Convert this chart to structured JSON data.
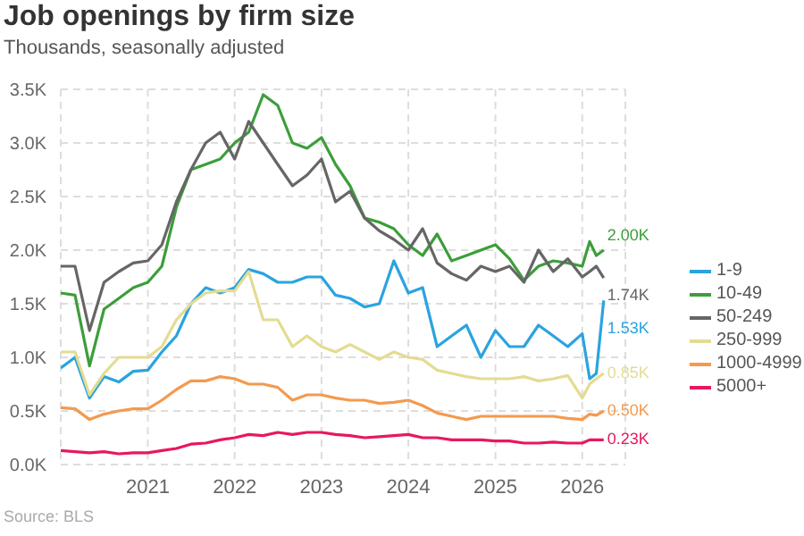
{
  "chart_data": {
    "type": "line",
    "title": "Job openings by firm size",
    "subtitle": "Thousands, seasonally adjusted",
    "annotations": [
      "Source: BLS"
    ],
    "x": [
      "2020-01",
      "2020-03",
      "2020-05",
      "2020-07",
      "2020-09",
      "2020-11",
      "2021-01",
      "2021-03",
      "2021-05",
      "2021-07",
      "2021-09",
      "2021-11",
      "2022-01",
      "2022-03",
      "2022-05",
      "2022-07",
      "2022-09",
      "2022-11",
      "2023-01",
      "2023-03",
      "2023-05",
      "2023-07",
      "2023-09",
      "2023-11",
      "2024-01",
      "2024-03",
      "2024-05",
      "2024-07",
      "2024-09",
      "2024-11",
      "2025-01",
      "2025-03",
      "2025-05",
      "2025-07",
      "2025-09",
      "2025-11",
      "2026-01",
      "2026-02",
      "2026-03",
      "2026-04"
    ],
    "series": [
      {
        "name": "1-9",
        "color": "#2ba3e0",
        "values": [
          0.9,
          1.0,
          0.62,
          0.82,
          0.77,
          0.87,
          0.88,
          1.05,
          1.2,
          1.5,
          1.65,
          1.6,
          1.65,
          1.82,
          1.78,
          1.7,
          1.7,
          1.75,
          1.75,
          1.58,
          1.55,
          1.47,
          1.5,
          1.9,
          1.6,
          1.65,
          1.1,
          1.2,
          1.3,
          1.0,
          1.25,
          1.1,
          1.1,
          1.3,
          1.2,
          1.1,
          1.22,
          0.8,
          0.85,
          1.53
        ],
        "value_labels": [
          null,
          null,
          null,
          null,
          null,
          null,
          null,
          null,
          null,
          null,
          null,
          null,
          null,
          null,
          null,
          null,
          null,
          null,
          null,
          null,
          null,
          null,
          null,
          null,
          null,
          null,
          null,
          null,
          null,
          null,
          null,
          null,
          null,
          null,
          null,
          null,
          null,
          null,
          null,
          "1.53K"
        ]
      },
      {
        "name": "10-49",
        "color": "#3c9e3a",
        "values": [
          1.6,
          1.58,
          0.92,
          1.45,
          1.55,
          1.65,
          1.7,
          1.85,
          2.4,
          2.75,
          2.8,
          2.85,
          3.0,
          3.1,
          3.45,
          3.35,
          3.0,
          2.95,
          3.05,
          2.8,
          2.6,
          2.3,
          2.26,
          2.2,
          2.05,
          1.95,
          2.15,
          1.9,
          1.95,
          2.0,
          2.05,
          1.92,
          1.72,
          1.85,
          1.9,
          1.88,
          1.85,
          2.08,
          1.95,
          2.0
        ],
        "value_labels": [
          null,
          null,
          null,
          null,
          null,
          null,
          null,
          null,
          null,
          null,
          null,
          null,
          null,
          null,
          null,
          null,
          null,
          null,
          null,
          null,
          null,
          null,
          null,
          null,
          null,
          null,
          null,
          null,
          null,
          null,
          null,
          null,
          null,
          null,
          null,
          null,
          null,
          null,
          null,
          "2.00K"
        ]
      },
      {
        "name": "50-249",
        "color": "#666666",
        "values": [
          1.85,
          1.85,
          1.25,
          1.7,
          1.8,
          1.88,
          1.9,
          2.05,
          2.45,
          2.75,
          3.0,
          3.1,
          2.85,
          3.2,
          3.0,
          2.8,
          2.6,
          2.7,
          2.85,
          2.45,
          2.55,
          2.3,
          2.18,
          2.1,
          2.0,
          2.2,
          1.88,
          1.78,
          1.72,
          1.85,
          1.8,
          1.85,
          1.7,
          2.0,
          1.8,
          1.92,
          1.75,
          1.8,
          1.85,
          1.74
        ],
        "value_labels": [
          null,
          null,
          null,
          null,
          null,
          null,
          null,
          null,
          null,
          null,
          null,
          null,
          null,
          null,
          null,
          null,
          null,
          null,
          null,
          null,
          null,
          null,
          null,
          null,
          null,
          null,
          null,
          null,
          null,
          null,
          null,
          null,
          null,
          null,
          null,
          null,
          null,
          null,
          null,
          "1.74K"
        ]
      },
      {
        "name": "250-999",
        "color": "#e3dc92",
        "values": [
          1.05,
          1.05,
          0.65,
          0.85,
          1.0,
          1.0,
          1.0,
          1.1,
          1.35,
          1.5,
          1.6,
          1.62,
          1.62,
          1.8,
          1.35,
          1.35,
          1.1,
          1.2,
          1.1,
          1.05,
          1.12,
          1.05,
          0.98,
          1.05,
          1.0,
          0.98,
          0.88,
          0.85,
          0.82,
          0.8,
          0.8,
          0.8,
          0.82,
          0.78,
          0.8,
          0.83,
          0.62,
          0.75,
          0.8,
          0.85
        ],
        "value_labels": [
          null,
          null,
          null,
          null,
          null,
          null,
          null,
          null,
          null,
          null,
          null,
          null,
          null,
          null,
          null,
          null,
          null,
          null,
          null,
          null,
          null,
          null,
          null,
          null,
          null,
          null,
          null,
          null,
          null,
          null,
          null,
          null,
          null,
          null,
          null,
          null,
          null,
          null,
          null,
          "0.85K"
        ]
      },
      {
        "name": "1000-4999",
        "color": "#f39a4f",
        "values": [
          0.53,
          0.52,
          0.42,
          0.47,
          0.5,
          0.52,
          0.52,
          0.6,
          0.7,
          0.78,
          0.78,
          0.82,
          0.8,
          0.75,
          0.75,
          0.72,
          0.6,
          0.65,
          0.65,
          0.62,
          0.6,
          0.6,
          0.57,
          0.58,
          0.6,
          0.55,
          0.48,
          0.45,
          0.42,
          0.45,
          0.45,
          0.45,
          0.45,
          0.45,
          0.45,
          0.43,
          0.42,
          0.47,
          0.46,
          0.5
        ],
        "value_labels": [
          null,
          null,
          null,
          null,
          null,
          null,
          null,
          null,
          null,
          null,
          null,
          null,
          null,
          null,
          null,
          null,
          null,
          null,
          null,
          null,
          null,
          null,
          null,
          null,
          null,
          null,
          null,
          null,
          null,
          null,
          null,
          null,
          null,
          null,
          null,
          null,
          null,
          null,
          null,
          "0.50K"
        ]
      },
      {
        "name": "5000+",
        "color": "#e8185a",
        "values": [
          0.13,
          0.12,
          0.11,
          0.12,
          0.1,
          0.11,
          0.11,
          0.13,
          0.15,
          0.19,
          0.2,
          0.23,
          0.25,
          0.28,
          0.27,
          0.3,
          0.28,
          0.3,
          0.3,
          0.28,
          0.27,
          0.25,
          0.26,
          0.27,
          0.28,
          0.25,
          0.25,
          0.23,
          0.23,
          0.23,
          0.22,
          0.22,
          0.2,
          0.2,
          0.21,
          0.2,
          0.2,
          0.23,
          0.23,
          0.23
        ],
        "value_labels": [
          null,
          null,
          null,
          null,
          null,
          null,
          null,
          null,
          null,
          null,
          null,
          null,
          null,
          null,
          null,
          null,
          null,
          null,
          null,
          null,
          null,
          null,
          null,
          null,
          null,
          null,
          null,
          null,
          null,
          null,
          null,
          null,
          null,
          null,
          null,
          null,
          null,
          null,
          null,
          "0.23K"
        ]
      }
    ],
    "xlim": [
      "2020-01",
      "2026-07"
    ],
    "xticks": [
      "2021",
      "2022",
      "2023",
      "2024",
      "2025",
      "2026"
    ],
    "ylim": [
      0,
      3.5
    ],
    "yticks": [
      {
        "value": 0,
        "label": "0.0K"
      },
      {
        "value": 0.5,
        "label": "0.5K"
      },
      {
        "value": 1,
        "label": "1.0K"
      },
      {
        "value": 1.5,
        "label": "1.5K"
      },
      {
        "value": 2,
        "label": "2.0K"
      },
      {
        "value": 2.5,
        "label": "2.5K"
      },
      {
        "value": 3,
        "label": "3.0K"
      },
      {
        "value": 3.5,
        "label": "3.5K"
      }
    ],
    "grid": true,
    "legend": "right",
    "marker": "none",
    "line_style": "solid"
  }
}
